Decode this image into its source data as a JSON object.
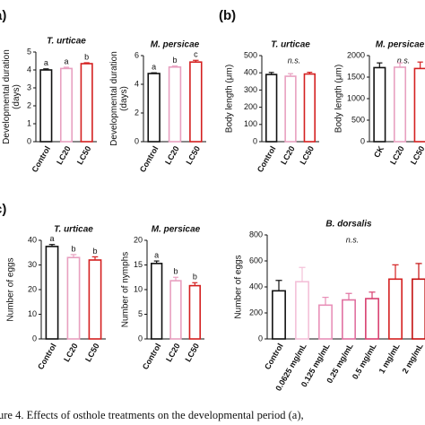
{
  "panel_labels": [
    "a)",
    "(b)",
    "c)"
  ],
  "caption": "ure 4.  Effects of osthole treatments on the developmental period (a),",
  "chart_data": [
    {
      "type": "bar",
      "title": "T. urticae",
      "ylabel": [
        "Developmental duration",
        "(days)"
      ],
      "categories": [
        "Control",
        "LC20",
        "LC50"
      ],
      "values": [
        4.0,
        4.08,
        4.35
      ],
      "errors": [
        0.06,
        0.07,
        0.05
      ],
      "letters": [
        "a",
        "a",
        "b"
      ],
      "colors": [
        "#111111",
        "#e8a0c0",
        "#d42020"
      ],
      "ylim": [
        0,
        5
      ],
      "yticks": [
        0,
        1,
        2,
        3,
        4,
        5
      ]
    },
    {
      "type": "bar",
      "title": "M. persicae",
      "ylabel": [
        "Developmental duration",
        "(days)"
      ],
      "categories": [
        "Control",
        "LC20",
        "LC50"
      ],
      "values": [
        4.75,
        5.2,
        5.55
      ],
      "errors": [
        0.05,
        0.07,
        0.12
      ],
      "letters": [
        "a",
        "b",
        "c"
      ],
      "colors": [
        "#111111",
        "#e8a0c0",
        "#d42020"
      ],
      "ylim": [
        0,
        6
      ],
      "yticks": [
        0,
        2,
        4,
        6
      ]
    },
    {
      "type": "bar",
      "title": "T. urticae",
      "ylabel": [
        "Body length (μm)"
      ],
      "categories": [
        "Control",
        "LC20",
        "LC50"
      ],
      "values": [
        390,
        380,
        393
      ],
      "errors": [
        12,
        15,
        10
      ],
      "annotation": "n.s.",
      "colors": [
        "#111111",
        "#e8a0c0",
        "#d42020"
      ],
      "ylim": [
        0,
        500
      ],
      "yticks": [
        0,
        100,
        200,
        300,
        400,
        500
      ]
    },
    {
      "type": "bar",
      "title": "M. persicae",
      "ylabel": [
        "Body length (μm)"
      ],
      "categories": [
        "CK",
        "LC20",
        "LC50"
      ],
      "values": [
        1720,
        1730,
        1700
      ],
      "errors": [
        110,
        100,
        150
      ],
      "annotation": "n.s.",
      "colors": [
        "#111111",
        "#e8a0c0",
        "#d42020"
      ],
      "ylim": [
        0,
        2000
      ],
      "yticks": [
        0,
        500,
        1000,
        1500,
        2000
      ]
    },
    {
      "type": "bar",
      "title": "T. urticae",
      "ylabel": [
        "Number of eggs"
      ],
      "categories": [
        "Control",
        "LC20",
        "LC50"
      ],
      "values": [
        37.5,
        33,
        32
      ],
      "errors": [
        0.8,
        1.2,
        1.3
      ],
      "letters": [
        "a",
        "b",
        "b"
      ],
      "colors": [
        "#111111",
        "#e8a0c0",
        "#d42020"
      ],
      "ylim": [
        0,
        40
      ],
      "yticks": [
        0,
        10,
        20,
        30,
        40
      ]
    },
    {
      "type": "bar",
      "title": "M. persicae",
      "ylabel": [
        "Number of nymphs"
      ],
      "categories": [
        "Control",
        "LC20",
        "LC50"
      ],
      "values": [
        15.3,
        11.8,
        10.8
      ],
      "errors": [
        0.5,
        0.7,
        0.6
      ],
      "letters": [
        "a",
        "b",
        "b"
      ],
      "colors": [
        "#111111",
        "#e8a0c0",
        "#d42020"
      ],
      "ylim": [
        0,
        20
      ],
      "yticks": [
        0,
        5,
        10,
        15,
        20
      ]
    },
    {
      "type": "bar",
      "title": "B. dorsalis",
      "ylabel": [
        "Number of eggs"
      ],
      "categories": [
        "Control",
        "0.0625 mg/mL",
        "0.125 mg/mL",
        "0.25 mg/mL",
        "0.5 mg/mL",
        "1 mg/mL",
        "2 mg/mL"
      ],
      "values": [
        370,
        440,
        260,
        300,
        310,
        460,
        460
      ],
      "errors": [
        80,
        110,
        60,
        50,
        50,
        110,
        120
      ],
      "annotation": "n.s.",
      "colors": [
        "#111111",
        "#f4c0d8",
        "#e890b8",
        "#e070a0",
        "#d84070",
        "#d42020",
        "#c41010"
      ],
      "ylim": [
        0,
        800
      ],
      "yticks": [
        0,
        200,
        400,
        600,
        800
      ]
    }
  ]
}
